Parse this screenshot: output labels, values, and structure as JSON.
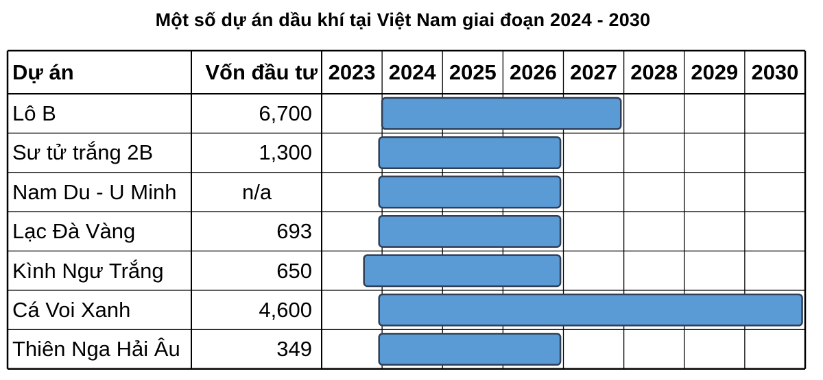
{
  "title": "Một số dự án dầu khí tại Việt Nam giai đoạn 2024 - 2030",
  "headers": {
    "project": "Dự án",
    "capital": "Vốn đầu tư"
  },
  "years": [
    "2023",
    "2024",
    "2025",
    "2026",
    "2027",
    "2028",
    "2029",
    "2030"
  ],
  "colors": {
    "bar_fill": "#5b9bd5",
    "bar_border": "#2f3f55",
    "grid": "#000000"
  },
  "chart_data": {
    "type": "table",
    "title": "Một số dự án dầu khí tại Việt Nam giai đoạn 2024 - 2030",
    "columns": [
      "Dự án",
      "Vốn đầu tư",
      "2023",
      "2024",
      "2025",
      "2026",
      "2027",
      "2028",
      "2029",
      "2030"
    ],
    "rows": [
      {
        "project": "Lô B",
        "capital": "6,700",
        "start": 2024.0,
        "end": 2027.95
      },
      {
        "project": "Sư tử trắng 2B",
        "capital": "1,300",
        "start": 2023.95,
        "end": 2026.95
      },
      {
        "project": "Nam Du - U Minh",
        "capital": "n/a",
        "start": 2023.95,
        "end": 2026.95
      },
      {
        "project": "Lạc Đà Vàng",
        "capital": "693",
        "start": 2023.95,
        "end": 2026.95
      },
      {
        "project": "Kình Ngư Trắng",
        "capital": "650",
        "start": 2023.7,
        "end": 2026.95
      },
      {
        "project": "Cá Voi Xanh",
        "capital": "4,600",
        "start": 2023.95,
        "end": 2030.95
      },
      {
        "project": "Thiên Nga Hải Âu",
        "capital": "349",
        "start": 2023.95,
        "end": 2026.95
      }
    ]
  }
}
